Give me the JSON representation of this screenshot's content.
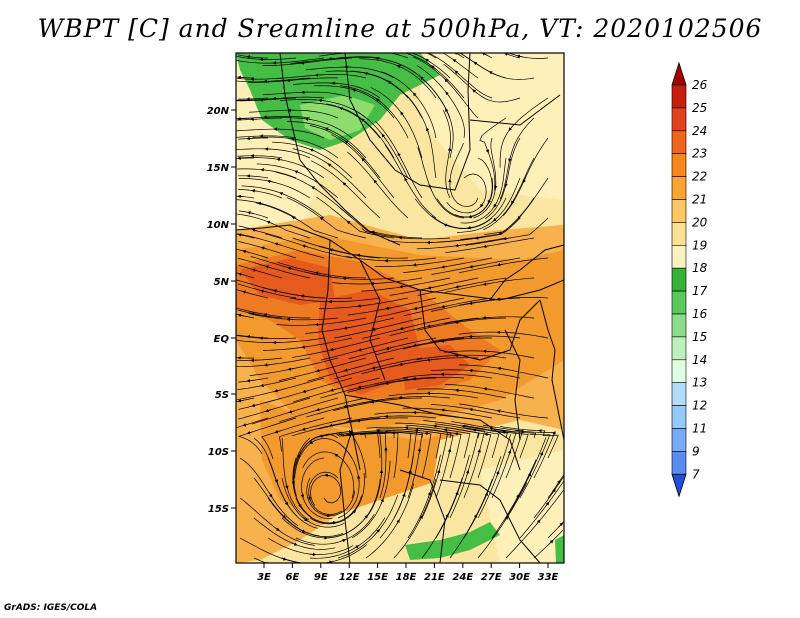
{
  "title": "WBPT [C] and Sreamline at 500hPa, VT: 2020102506",
  "credit": "GrADS: IGES/COLA",
  "map": {
    "variable": "Wet-bulb potential temperature",
    "units": "C",
    "level": "500hPa",
    "valid_time": "2020102506",
    "lat_labels": [
      "20N",
      "15N",
      "10N",
      "5N",
      "EQ",
      "5S",
      "10S",
      "15S"
    ],
    "lon_labels": [
      "3E",
      "6E",
      "9E",
      "12E",
      "15E",
      "18E",
      "21E",
      "24E",
      "27E",
      "30E",
      "33E"
    ]
  },
  "colorbar": {
    "levels": [
      "26",
      "25",
      "24",
      "23",
      "22",
      "21",
      "20",
      "19",
      "18",
      "17",
      "16",
      "15",
      "14",
      "13",
      "12",
      "11",
      "9",
      "7"
    ],
    "colors": [
      "#a50000",
      "#c81e0f",
      "#e1411e",
      "#f0641e",
      "#f5871e",
      "#faa532",
      "#fac864",
      "#fae196",
      "#f8f3c0",
      "#37b237",
      "#5ac85a",
      "#8cdc8c",
      "#bef0be",
      "#e1ffe1",
      "#b4dcfa",
      "#96c8fa",
      "#78aaf5",
      "#5a8cf0",
      "#3c6ee6",
      "#1e50dc"
    ],
    "top_arrow_color": "#a50000",
    "bottom_arrow_color": "#1e50dc"
  },
  "palette": {
    "cream": "#fae6a0",
    "light_cream": "#fff0b9",
    "orange_light": "#f7b24e",
    "orange": "#f29a2e",
    "orange_dark": "#ee7a22",
    "red_orange": "#e65a1e",
    "green": "#46be46",
    "green_light": "#8cdc6e"
  }
}
